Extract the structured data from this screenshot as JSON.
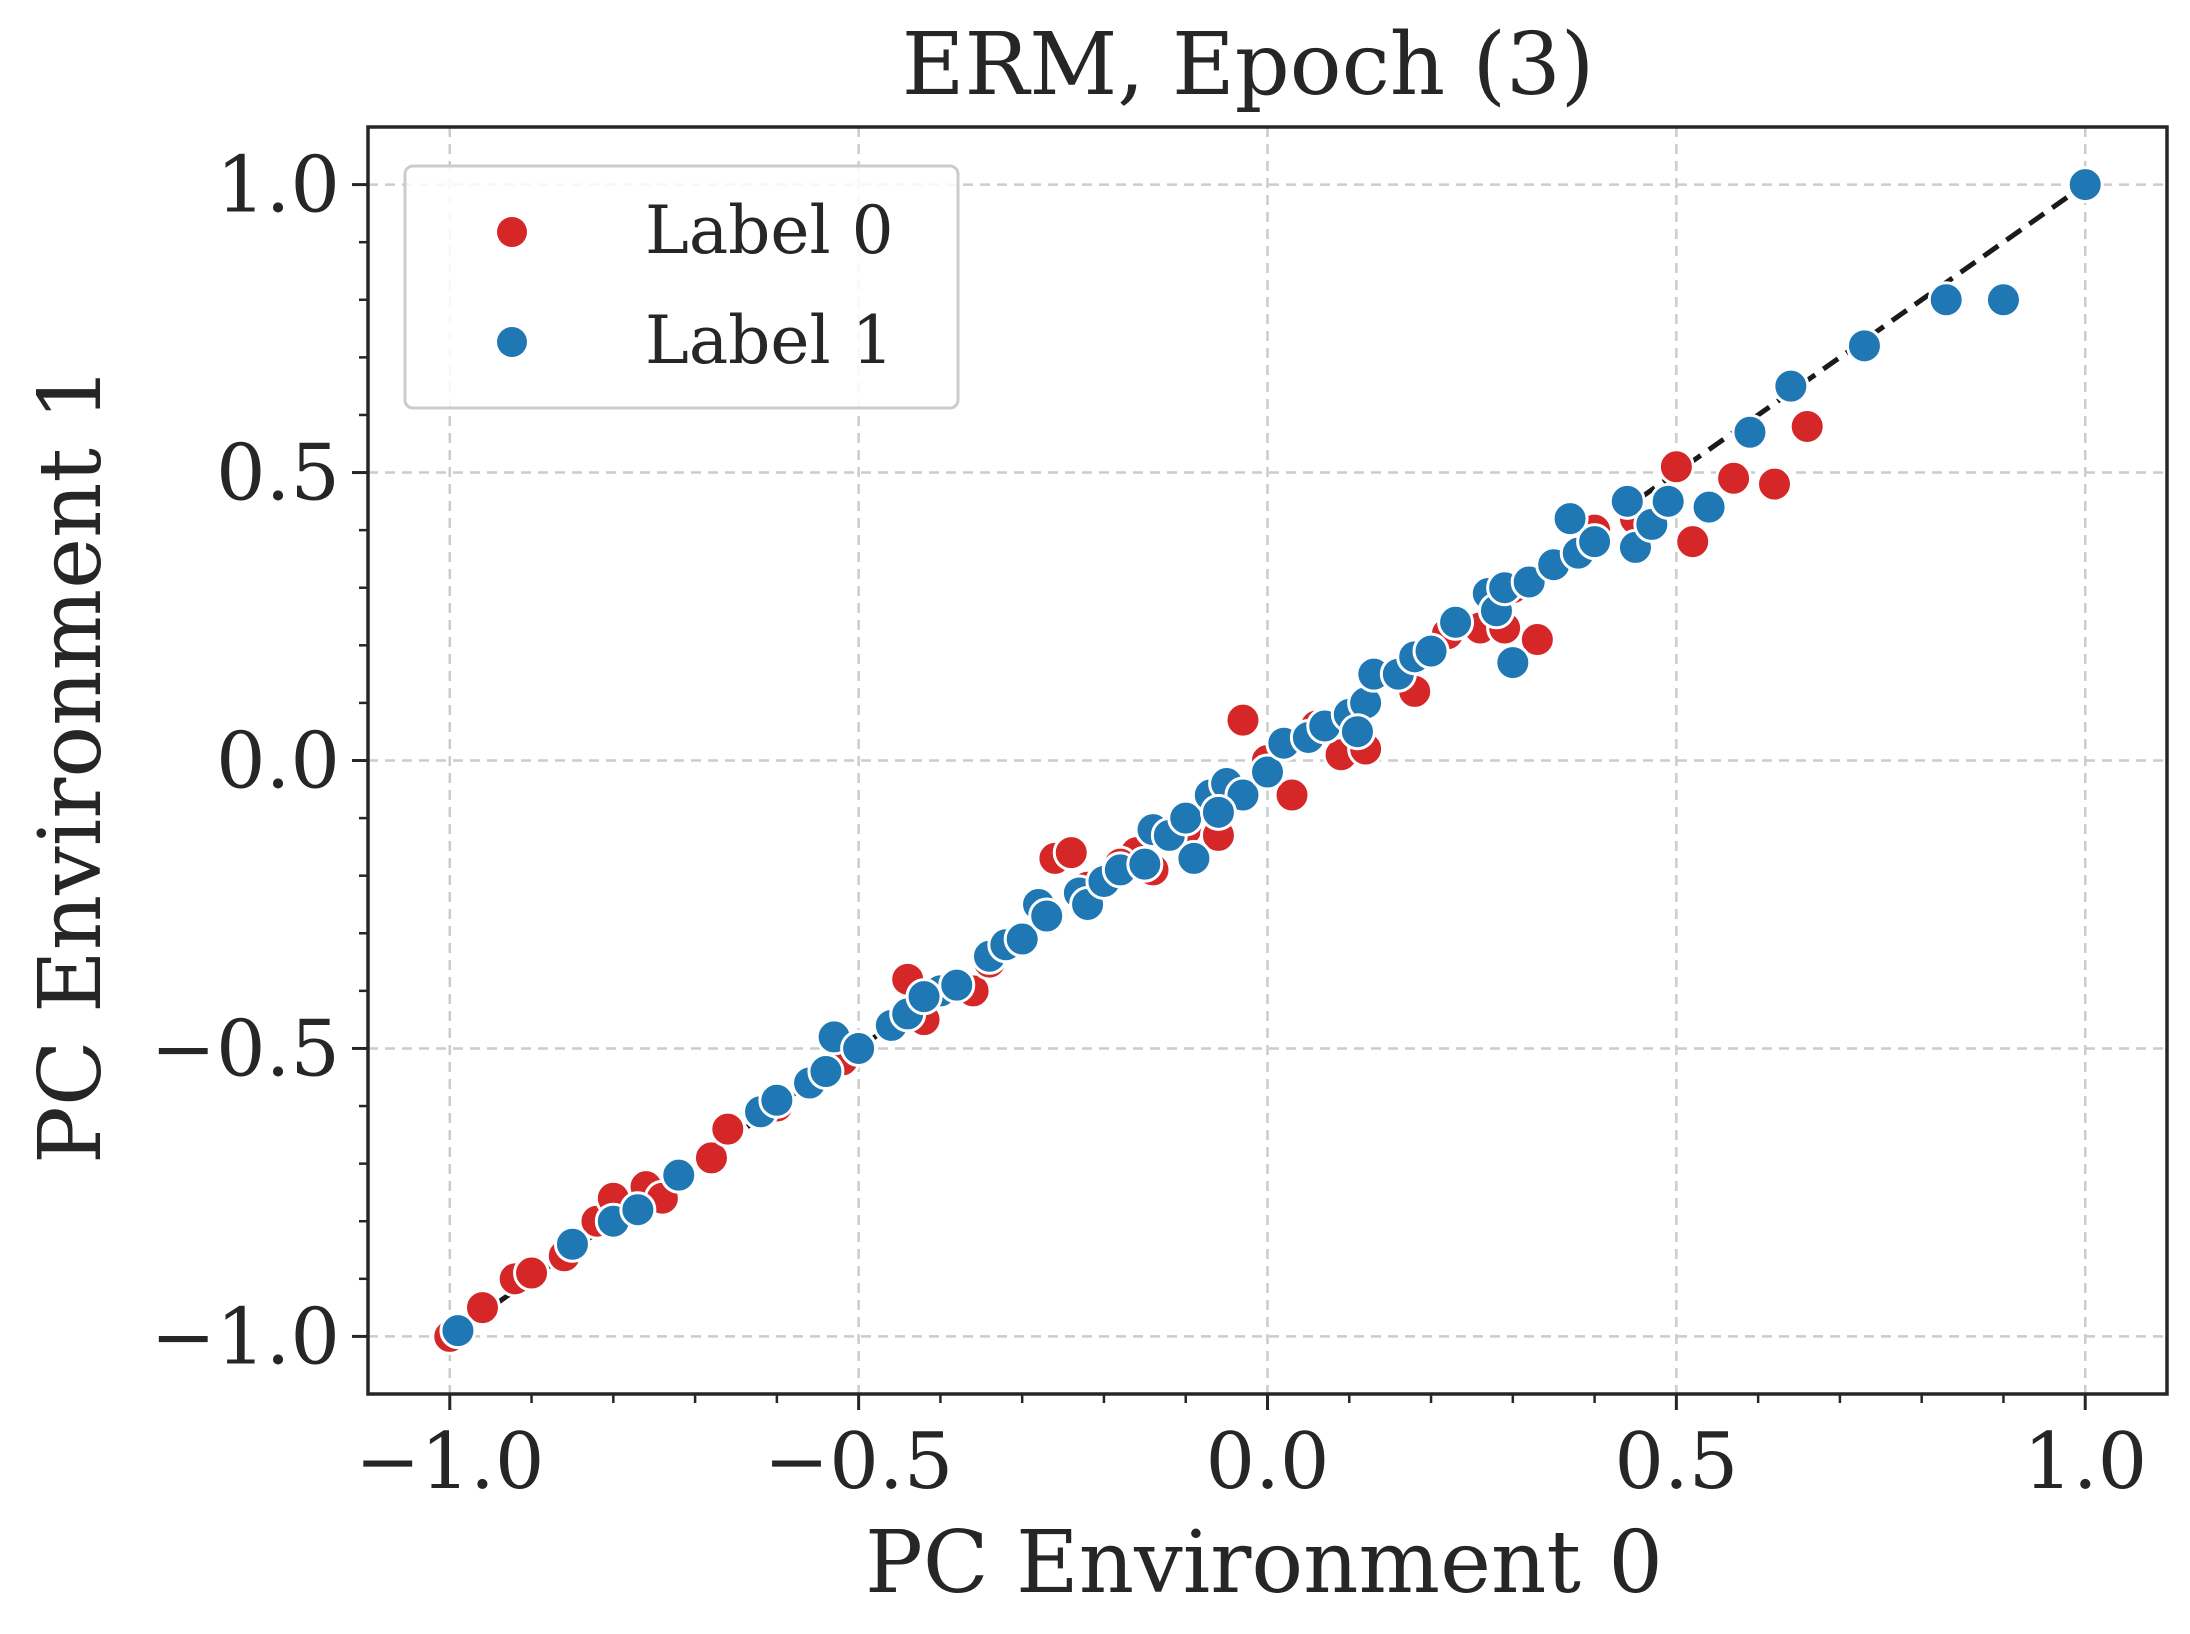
{
  "chart_data": {
    "type": "scatter",
    "title": "ERM, Epoch (3)",
    "xlabel": "PC Environment 0",
    "ylabel": "PC Environment 1",
    "xlim": [
      -1.1,
      1.1
    ],
    "ylim": [
      -1.1,
      1.1
    ],
    "xticks": [
      -1.0,
      -0.5,
      0.0,
      0.5,
      1.0
    ],
    "yticks": [
      -1.0,
      -0.5,
      0.0,
      0.5,
      1.0
    ],
    "xtick_labels": [
      "−1.0",
      "−0.5",
      "0.0",
      "0.5",
      "1.0"
    ],
    "ytick_labels": [
      "−1.0",
      "−0.5",
      "0.0",
      "0.5",
      "1.0"
    ],
    "grid": true,
    "legend_position": "top-left",
    "reference_line": {
      "style": "dashed",
      "color": "#1a1a1a",
      "from": [
        -1.0,
        -1.0
      ],
      "to": [
        1.0,
        1.0
      ]
    },
    "series": [
      {
        "name": "Label 0",
        "color": "#d62728",
        "points": [
          [
            -1.0,
            -1.0
          ],
          [
            -0.96,
            -0.95
          ],
          [
            -0.92,
            -0.9
          ],
          [
            -0.9,
            -0.89
          ],
          [
            -0.86,
            -0.86
          ],
          [
            -0.82,
            -0.8
          ],
          [
            -0.8,
            -0.76
          ],
          [
            -0.76,
            -0.74
          ],
          [
            -0.74,
            -0.76
          ],
          [
            -0.72,
            -0.72
          ],
          [
            -0.68,
            -0.69
          ],
          [
            -0.66,
            -0.64
          ],
          [
            -0.6,
            -0.6
          ],
          [
            -0.56,
            -0.56
          ],
          [
            -0.52,
            -0.52
          ],
          [
            -0.5,
            -0.5
          ],
          [
            -0.46,
            -0.46
          ],
          [
            -0.44,
            -0.38
          ],
          [
            -0.42,
            -0.45
          ],
          [
            -0.36,
            -0.4
          ],
          [
            -0.34,
            -0.35
          ],
          [
            -0.32,
            -0.32
          ],
          [
            -0.26,
            -0.17
          ],
          [
            -0.24,
            -0.16
          ],
          [
            -0.22,
            -0.22
          ],
          [
            -0.16,
            -0.16
          ],
          [
            -0.14,
            -0.19
          ],
          [
            -0.1,
            -0.12
          ],
          [
            -0.06,
            -0.13
          ],
          [
            -0.03,
            0.07
          ],
          [
            0.0,
            0.0
          ],
          [
            0.03,
            -0.06
          ],
          [
            0.06,
            0.06
          ],
          [
            0.09,
            0.01
          ],
          [
            0.12,
            0.02
          ],
          [
            0.16,
            0.15
          ],
          [
            0.18,
            0.12
          ],
          [
            0.22,
            0.22
          ],
          [
            0.26,
            0.23
          ],
          [
            0.29,
            0.23
          ],
          [
            0.33,
            0.21
          ],
          [
            0.4,
            0.4
          ],
          [
            0.45,
            0.42
          ],
          [
            0.5,
            0.51
          ],
          [
            0.52,
            0.38
          ],
          [
            0.57,
            0.49
          ],
          [
            0.62,
            0.48
          ],
          [
            0.66,
            0.58
          ],
          [
            0.3,
            0.3
          ],
          [
            -0.18,
            -0.18
          ]
        ]
      },
      {
        "name": "Label 1",
        "color": "#1f77b4",
        "points": [
          [
            -0.99,
            -0.99
          ],
          [
            -0.85,
            -0.84
          ],
          [
            -0.8,
            -0.8
          ],
          [
            -0.77,
            -0.78
          ],
          [
            -0.72,
            -0.72
          ],
          [
            -0.62,
            -0.61
          ],
          [
            -0.6,
            -0.59
          ],
          [
            -0.56,
            -0.56
          ],
          [
            -0.54,
            -0.54
          ],
          [
            -0.53,
            -0.48
          ],
          [
            -0.5,
            -0.5
          ],
          [
            -0.46,
            -0.46
          ],
          [
            -0.44,
            -0.44
          ],
          [
            -0.4,
            -0.4
          ],
          [
            -0.38,
            -0.39
          ],
          [
            -0.34,
            -0.34
          ],
          [
            -0.32,
            -0.32
          ],
          [
            -0.3,
            -0.31
          ],
          [
            -0.28,
            -0.25
          ],
          [
            -0.23,
            -0.23
          ],
          [
            -0.22,
            -0.25
          ],
          [
            -0.2,
            -0.21
          ],
          [
            -0.18,
            -0.19
          ],
          [
            -0.15,
            -0.18
          ],
          [
            -0.14,
            -0.12
          ],
          [
            -0.12,
            -0.13
          ],
          [
            -0.1,
            -0.1
          ],
          [
            -0.09,
            -0.17
          ],
          [
            -0.07,
            -0.06
          ],
          [
            -0.05,
            -0.04
          ],
          [
            -0.03,
            -0.06
          ],
          [
            0.0,
            -0.02
          ],
          [
            0.02,
            0.03
          ],
          [
            0.05,
            0.04
          ],
          [
            0.07,
            0.06
          ],
          [
            0.1,
            0.08
          ],
          [
            0.12,
            0.1
          ],
          [
            0.13,
            0.15
          ],
          [
            0.16,
            0.15
          ],
          [
            0.18,
            0.18
          ],
          [
            0.2,
            0.19
          ],
          [
            0.23,
            0.24
          ],
          [
            0.27,
            0.29
          ],
          [
            0.28,
            0.26
          ],
          [
            0.29,
            0.3
          ],
          [
            0.3,
            0.17
          ],
          [
            0.32,
            0.31
          ],
          [
            0.35,
            0.34
          ],
          [
            0.37,
            0.42
          ],
          [
            0.38,
            0.36
          ],
          [
            0.4,
            0.38
          ],
          [
            0.44,
            0.45
          ],
          [
            0.45,
            0.37
          ],
          [
            0.47,
            0.41
          ],
          [
            0.49,
            0.45
          ],
          [
            0.54,
            0.44
          ],
          [
            0.59,
            0.57
          ],
          [
            0.64,
            0.65
          ],
          [
            0.73,
            0.72
          ],
          [
            0.83,
            0.8
          ],
          [
            0.9,
            0.8
          ],
          [
            1.0,
            1.0
          ],
          [
            0.11,
            0.05
          ],
          [
            -0.06,
            -0.09
          ],
          [
            -0.42,
            -0.41
          ],
          [
            -0.27,
            -0.27
          ]
        ]
      }
    ]
  }
}
